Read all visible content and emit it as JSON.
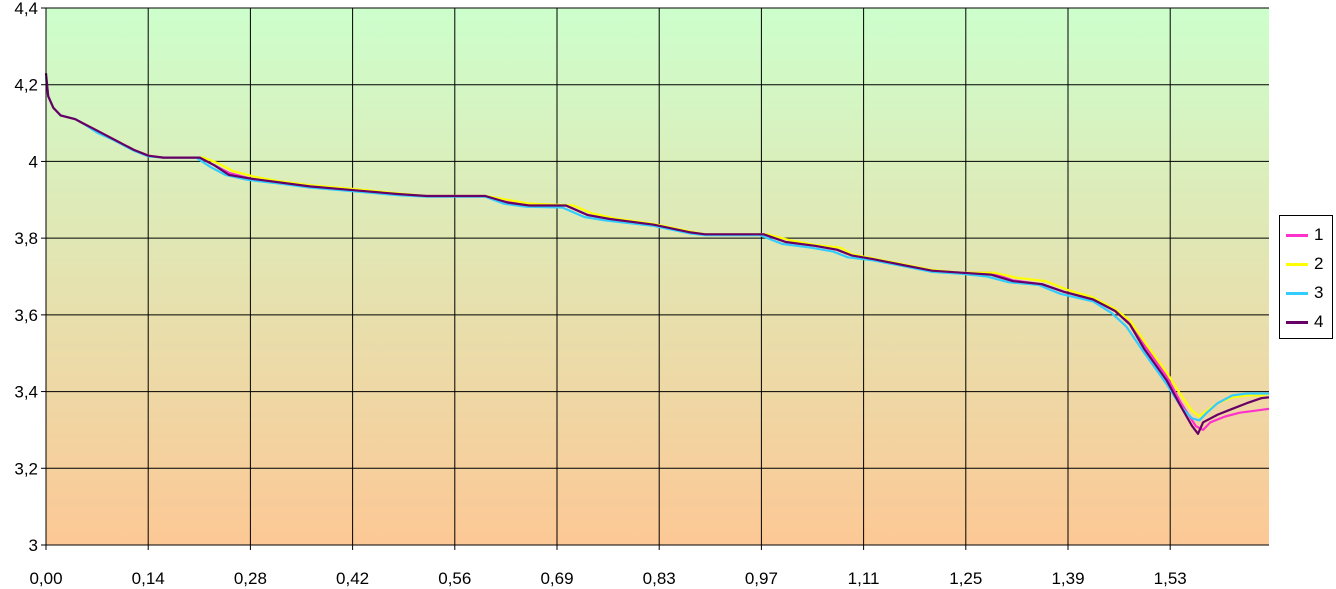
{
  "chart_data": {
    "type": "line",
    "title": "",
    "xlabel": "",
    "ylabel": "",
    "x_ticks": [
      "0,00",
      "0,14",
      "0,28",
      "0,42",
      "0,56",
      "0,69",
      "0,83",
      "0,97",
      "1,11",
      "1,25",
      "1,39",
      "1,53"
    ],
    "y_ticks": [
      "3",
      "3,2",
      "3,4",
      "3,6",
      "3,8",
      "4",
      "4,2",
      "4,4"
    ],
    "xlim": [
      0,
      1.67
    ],
    "ylim": [
      3.0,
      4.4
    ],
    "grid": true,
    "background_gradient": {
      "top": "#ccffcc",
      "bottom": "#fcc895"
    },
    "legend_position": "right",
    "series": [
      {
        "name": "1",
        "color": "#ff33cc",
        "points": [
          [
            0,
            4.22
          ],
          [
            0.003,
            4.17
          ],
          [
            0.01,
            4.14
          ],
          [
            0.02,
            4.12
          ],
          [
            0.04,
            4.11
          ],
          [
            0.05,
            4.1
          ],
          [
            0.07,
            4.08
          ],
          [
            0.09,
            4.06
          ],
          [
            0.12,
            4.03
          ],
          [
            0.14,
            4.015
          ],
          [
            0.16,
            4.01
          ],
          [
            0.21,
            4.01
          ],
          [
            0.23,
            3.99
          ],
          [
            0.25,
            3.97
          ],
          [
            0.28,
            3.955
          ],
          [
            0.32,
            3.945
          ],
          [
            0.36,
            3.935
          ],
          [
            0.42,
            3.925
          ],
          [
            0.48,
            3.915
          ],
          [
            0.52,
            3.91
          ],
          [
            0.6,
            3.91
          ],
          [
            0.63,
            3.895
          ],
          [
            0.66,
            3.885
          ],
          [
            0.71,
            3.885
          ],
          [
            0.74,
            3.86
          ],
          [
            0.77,
            3.85
          ],
          [
            0.83,
            3.835
          ],
          [
            0.88,
            3.815
          ],
          [
            0.9,
            3.81
          ],
          [
            0.98,
            3.81
          ],
          [
            1.01,
            3.79
          ],
          [
            1.05,
            3.78
          ],
          [
            1.08,
            3.77
          ],
          [
            1.1,
            3.755
          ],
          [
            1.13,
            3.745
          ],
          [
            1.17,
            3.73
          ],
          [
            1.21,
            3.715
          ],
          [
            1.25,
            3.71
          ],
          [
            1.29,
            3.71
          ],
          [
            1.32,
            3.69
          ],
          [
            1.36,
            3.68
          ],
          [
            1.39,
            3.66
          ],
          [
            1.43,
            3.64
          ],
          [
            1.46,
            3.61
          ],
          [
            1.48,
            3.58
          ],
          [
            1.5,
            3.52
          ],
          [
            1.53,
            3.44
          ],
          [
            1.55,
            3.37
          ],
          [
            1.57,
            3.31
          ],
          [
            1.58,
            3.3
          ],
          [
            1.59,
            3.32
          ],
          [
            1.61,
            3.335
          ],
          [
            1.63,
            3.345
          ],
          [
            1.65,
            3.35
          ],
          [
            1.67,
            3.355
          ]
        ]
      },
      {
        "name": "2",
        "color": "#ffff00",
        "points": [
          [
            0,
            4.22
          ],
          [
            0.003,
            4.17
          ],
          [
            0.01,
            4.14
          ],
          [
            0.02,
            4.12
          ],
          [
            0.04,
            4.11
          ],
          [
            0.05,
            4.1
          ],
          [
            0.07,
            4.08
          ],
          [
            0.09,
            4.06
          ],
          [
            0.12,
            4.03
          ],
          [
            0.14,
            4.015
          ],
          [
            0.16,
            4.01
          ],
          [
            0.215,
            4.01
          ],
          [
            0.235,
            3.995
          ],
          [
            0.255,
            3.975
          ],
          [
            0.285,
            3.96
          ],
          [
            0.32,
            3.948
          ],
          [
            0.36,
            3.938
          ],
          [
            0.42,
            3.928
          ],
          [
            0.48,
            3.917
          ],
          [
            0.52,
            3.91
          ],
          [
            0.6,
            3.91
          ],
          [
            0.63,
            3.9
          ],
          [
            0.66,
            3.89
          ],
          [
            0.72,
            3.885
          ],
          [
            0.745,
            3.865
          ],
          [
            0.775,
            3.852
          ],
          [
            0.83,
            3.837
          ],
          [
            0.88,
            3.817
          ],
          [
            0.9,
            3.81
          ],
          [
            0.985,
            3.81
          ],
          [
            1.015,
            3.795
          ],
          [
            1.05,
            3.782
          ],
          [
            1.085,
            3.775
          ],
          [
            1.1,
            3.758
          ],
          [
            1.13,
            3.747
          ],
          [
            1.17,
            3.732
          ],
          [
            1.21,
            3.717
          ],
          [
            1.25,
            3.71
          ],
          [
            1.295,
            3.71
          ],
          [
            1.325,
            3.697
          ],
          [
            1.365,
            3.688
          ],
          [
            1.395,
            3.665
          ],
          [
            1.43,
            3.645
          ],
          [
            1.46,
            3.615
          ],
          [
            1.48,
            3.585
          ],
          [
            1.5,
            3.53
          ],
          [
            1.53,
            3.45
          ],
          [
            1.55,
            3.39
          ],
          [
            1.565,
            3.35
          ],
          [
            1.575,
            3.335
          ],
          [
            1.585,
            3.35
          ],
          [
            1.6,
            3.37
          ],
          [
            1.62,
            3.385
          ],
          [
            1.64,
            3.39
          ],
          [
            1.66,
            3.39
          ],
          [
            1.67,
            3.395
          ]
        ]
      },
      {
        "name": "3",
        "color": "#33ccff",
        "points": [
          [
            0,
            4.22
          ],
          [
            0.003,
            4.17
          ],
          [
            0.01,
            4.14
          ],
          [
            0.02,
            4.12
          ],
          [
            0.04,
            4.11
          ],
          [
            0.05,
            4.1
          ],
          [
            0.07,
            4.075
          ],
          [
            0.09,
            4.058
          ],
          [
            0.12,
            4.028
          ],
          [
            0.14,
            4.013
          ],
          [
            0.16,
            4.01
          ],
          [
            0.205,
            4.01
          ],
          [
            0.225,
            3.985
          ],
          [
            0.245,
            3.965
          ],
          [
            0.275,
            3.952
          ],
          [
            0.32,
            3.942
          ],
          [
            0.36,
            3.932
          ],
          [
            0.42,
            3.922
          ],
          [
            0.48,
            3.912
          ],
          [
            0.52,
            3.908
          ],
          [
            0.6,
            3.908
          ],
          [
            0.625,
            3.89
          ],
          [
            0.655,
            3.882
          ],
          [
            0.705,
            3.88
          ],
          [
            0.735,
            3.855
          ],
          [
            0.765,
            3.846
          ],
          [
            0.83,
            3.832
          ],
          [
            0.88,
            3.812
          ],
          [
            0.9,
            3.808
          ],
          [
            0.975,
            3.808
          ],
          [
            1.005,
            3.785
          ],
          [
            1.045,
            3.775
          ],
          [
            1.075,
            3.765
          ],
          [
            1.095,
            3.75
          ],
          [
            1.13,
            3.742
          ],
          [
            1.17,
            3.727
          ],
          [
            1.21,
            3.712
          ],
          [
            1.25,
            3.707
          ],
          [
            1.285,
            3.7
          ],
          [
            1.315,
            3.685
          ],
          [
            1.355,
            3.678
          ],
          [
            1.385,
            3.655
          ],
          [
            1.43,
            3.635
          ],
          [
            1.455,
            3.605
          ],
          [
            1.475,
            3.57
          ],
          [
            1.5,
            3.5
          ],
          [
            1.53,
            3.42
          ],
          [
            1.55,
            3.36
          ],
          [
            1.565,
            3.33
          ],
          [
            1.575,
            3.325
          ],
          [
            1.585,
            3.345
          ],
          [
            1.6,
            3.37
          ],
          [
            1.62,
            3.39
          ],
          [
            1.64,
            3.395
          ],
          [
            1.67,
            3.395
          ]
        ]
      },
      {
        "name": "4",
        "color": "#660066",
        "points": [
          [
            0,
            4.23
          ],
          [
            0.003,
            4.17
          ],
          [
            0.01,
            4.14
          ],
          [
            0.02,
            4.12
          ],
          [
            0.04,
            4.11
          ],
          [
            0.05,
            4.1
          ],
          [
            0.07,
            4.08
          ],
          [
            0.09,
            4.06
          ],
          [
            0.12,
            4.03
          ],
          [
            0.14,
            4.015
          ],
          [
            0.16,
            4.01
          ],
          [
            0.21,
            4.01
          ],
          [
            0.23,
            3.99
          ],
          [
            0.25,
            3.965
          ],
          [
            0.28,
            3.955
          ],
          [
            0.32,
            3.945
          ],
          [
            0.36,
            3.935
          ],
          [
            0.42,
            3.925
          ],
          [
            0.48,
            3.915
          ],
          [
            0.52,
            3.91
          ],
          [
            0.6,
            3.91
          ],
          [
            0.63,
            3.893
          ],
          [
            0.66,
            3.885
          ],
          [
            0.71,
            3.885
          ],
          [
            0.74,
            3.86
          ],
          [
            0.77,
            3.85
          ],
          [
            0.83,
            3.835
          ],
          [
            0.88,
            3.815
          ],
          [
            0.9,
            3.81
          ],
          [
            0.98,
            3.81
          ],
          [
            1.01,
            3.79
          ],
          [
            1.05,
            3.78
          ],
          [
            1.08,
            3.77
          ],
          [
            1.1,
            3.755
          ],
          [
            1.13,
            3.745
          ],
          [
            1.17,
            3.73
          ],
          [
            1.21,
            3.715
          ],
          [
            1.25,
            3.71
          ],
          [
            1.29,
            3.705
          ],
          [
            1.32,
            3.688
          ],
          [
            1.36,
            3.68
          ],
          [
            1.39,
            3.66
          ],
          [
            1.43,
            3.64
          ],
          [
            1.46,
            3.61
          ],
          [
            1.48,
            3.575
          ],
          [
            1.5,
            3.51
          ],
          [
            1.53,
            3.43
          ],
          [
            1.55,
            3.36
          ],
          [
            1.565,
            3.31
          ],
          [
            1.573,
            3.29
          ],
          [
            1.58,
            3.32
          ],
          [
            1.6,
            3.34
          ],
          [
            1.62,
            3.355
          ],
          [
            1.64,
            3.37
          ],
          [
            1.66,
            3.383
          ],
          [
            1.67,
            3.385
          ]
        ]
      }
    ]
  }
}
